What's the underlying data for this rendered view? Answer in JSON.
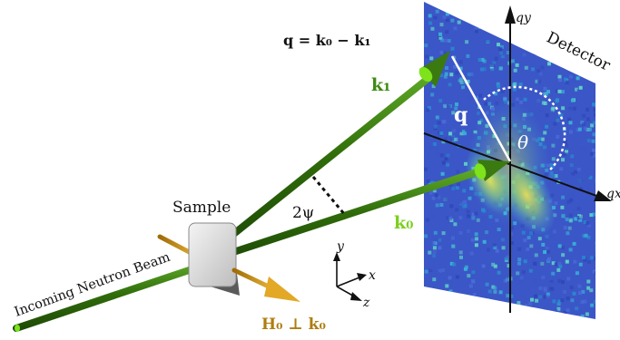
{
  "figure": {
    "equation": "q = k₀ − k₁",
    "detector_label": "Detector",
    "sample_label": "Sample",
    "beam_label": "Incoming Neutron Beam",
    "vectors": {
      "k0": "k₀",
      "k1": "k₁",
      "q_vec": "q",
      "field": "H₀ ⊥ k₀"
    },
    "angles": {
      "two_psi": "2ψ",
      "theta": "θ"
    },
    "axes": {
      "qy": "qy",
      "qx": "qx",
      "x": "x",
      "y": "y",
      "z": "z"
    }
  },
  "colors": {
    "beam_dark": "#2f6b0a",
    "beam_light": "#4f9a1c",
    "tip": "#7ee31a",
    "field": "#c8900e",
    "detector_bg": "#3a55c8"
  }
}
